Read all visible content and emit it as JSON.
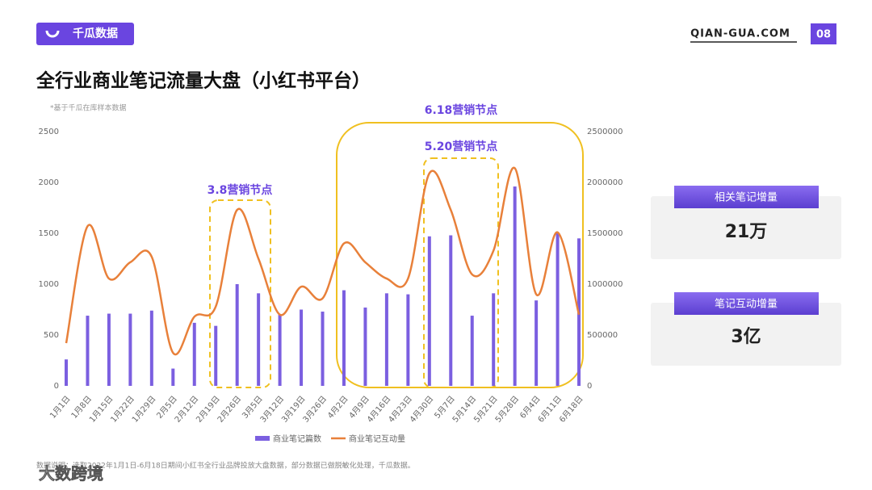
{
  "header": {
    "logo": "千瓜数据",
    "site": "QIAN-GUA.COM",
    "page": "08"
  },
  "chart_data": {
    "type": "bar-line",
    "title": "全行业商业笔记流量大盘（小红书平台）",
    "note": "*基于千瓜在库样本数据",
    "categories": [
      "1月1日",
      "1月8日",
      "1月15日",
      "1月22日",
      "1月29日",
      "2月5日",
      "2月12日",
      "2月19日",
      "2月26日",
      "3月5日",
      "3月12日",
      "3月19日",
      "3月26日",
      "4月2日",
      "4月9日",
      "4月16日",
      "4月23日",
      "4月30日",
      "5月7日",
      "5月14日",
      "5月21日",
      "5月28日",
      "6月4日",
      "6月11日",
      "6月18日"
    ],
    "series": [
      {
        "name": "商业笔记篇数",
        "type": "bar",
        "color": "#7b5fe0",
        "values": [
          260,
          690,
          710,
          710,
          740,
          170,
          620,
          590,
          1000,
          910,
          700,
          750,
          730,
          940,
          770,
          910,
          900,
          1470,
          1480,
          690,
          910,
          1960,
          840,
          1500,
          1450
        ]
      },
      {
        "name": "商业笔记互动量",
        "type": "line",
        "axis": "y2",
        "color": "#e8803a",
        "values": [
          420000,
          1570000,
          1055000,
          1215000,
          1270000,
          325000,
          680000,
          780000,
          1730000,
          1250000,
          700000,
          975000,
          860000,
          1400000,
          1215000,
          1055000,
          1055000,
          2090000,
          1730000,
          1095000,
          1330000,
          2140000,
          900000,
          1510000,
          700000
        ]
      }
    ],
    "ylim": [
      0,
      2500
    ],
    "yticks": [
      0,
      500,
      1000,
      1500,
      2000,
      2500
    ],
    "y2lim": [
      0,
      2500000
    ],
    "y2ticks": [
      0,
      500000,
      1000000,
      1500000,
      2000000,
      2500000
    ],
    "annotations": [
      "3.8营销节点",
      "6.18营销节点",
      "5.20营销节点"
    ],
    "source": "数据说明：选取2022年1月1日-6月18日期间小红书全行业品牌投放大盘数据，部分数据已做脱敏化处理，千瓜数据。"
  },
  "cards": [
    {
      "label": "相关笔记增量",
      "value": "21万"
    },
    {
      "label": "笔记互动增量",
      "value": "3亿"
    }
  ],
  "watermark": "大数跨境"
}
